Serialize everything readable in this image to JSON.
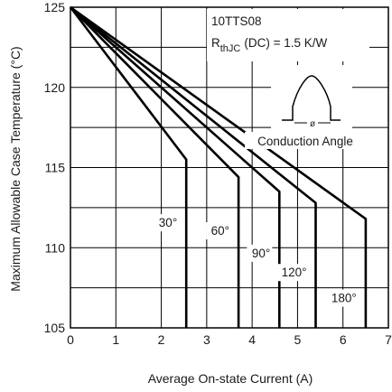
{
  "chart_data": {
    "type": "line",
    "title": "",
    "xlabel": "Average On-state Current (A)",
    "ylabel": "Maximum Allowable Case Temperature (°C)",
    "xlim": [
      0,
      7
    ],
    "ylim": [
      105,
      125
    ],
    "x_ticks": [
      "0",
      "1",
      "2",
      "3",
      "4",
      "5",
      "6",
      "7"
    ],
    "y_ticks": [
      "105",
      "110",
      "115",
      "120",
      "125"
    ],
    "grid": true,
    "annotations": {
      "device": "10TTS08",
      "rth_r": "R",
      "rth_sub": "thJC",
      "rth_rest": "(DC) = 1.5 K/W",
      "phi": "ø",
      "waveform_label": "Conduction Angle"
    },
    "series": [
      {
        "name": "30°",
        "x": [
          0,
          2.55,
          2.55
        ],
        "y": [
          125,
          115.5,
          105
        ]
      },
      {
        "name": "60°",
        "x": [
          0,
          3.7,
          3.7
        ],
        "y": [
          125,
          114.4,
          105
        ]
      },
      {
        "name": "90°",
        "x": [
          0,
          4.6,
          4.6
        ],
        "y": [
          125,
          113.5,
          105
        ]
      },
      {
        "name": "120°",
        "x": [
          0,
          5.4,
          5.4
        ],
        "y": [
          125,
          112.8,
          105
        ]
      },
      {
        "name": "180°",
        "x": [
          0,
          6.5,
          6.5
        ],
        "y": [
          125,
          111.8,
          105
        ]
      }
    ]
  }
}
